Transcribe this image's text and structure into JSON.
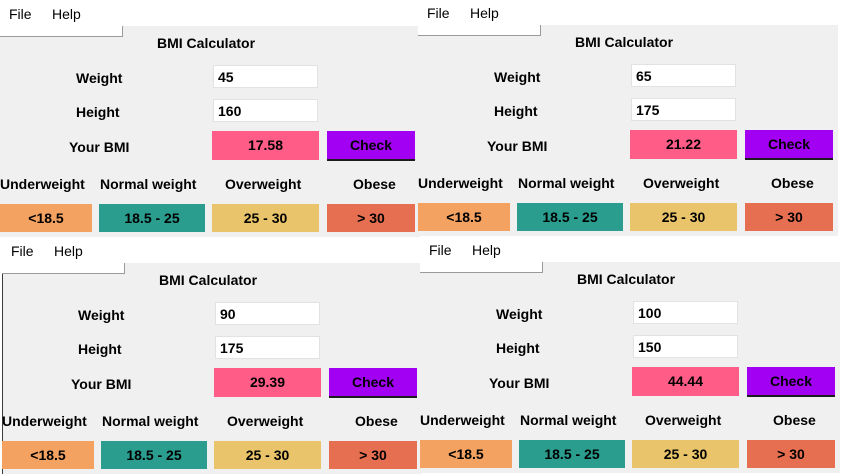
{
  "menu": {
    "file": "File",
    "help": "Help"
  },
  "app_title": "BMI Calculator",
  "labels": {
    "weight": "Weight",
    "height": "Height",
    "bmi": "Your BMI"
  },
  "check_label": "Check",
  "categories": [
    {
      "name": "Underweight",
      "range": "<18.5",
      "color": "#f4a261"
    },
    {
      "name": "Normal weight",
      "range": "18.5 - 25",
      "color": "#2a9d8f"
    },
    {
      "name": "Overweight",
      "range": "25 - 30",
      "color": "#e9c46a"
    },
    {
      "name": "Obese",
      "range": "> 30",
      "color": "#e76f51"
    }
  ],
  "colors": {
    "result_bg": "#ff5c87",
    "check_bg": "#a100f2"
  },
  "windows": [
    {
      "weight": "45",
      "height": "160",
      "bmi": "17.58"
    },
    {
      "weight": "65",
      "height": "175",
      "bmi": "21.22"
    },
    {
      "weight": "90",
      "height": "175",
      "bmi": "29.39"
    },
    {
      "weight": "100",
      "height": "150",
      "bmi": "44.44"
    }
  ]
}
